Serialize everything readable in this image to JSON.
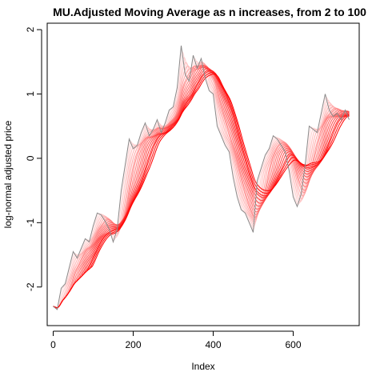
{
  "chart_data": {
    "type": "line",
    "title": "MU.Adjusted Moving Average as n increases, from 2 to 100",
    "xlabel": "Index",
    "ylabel": "log-normal adjusted price",
    "xlim": [
      -15,
      765
    ],
    "ylim": [
      -2.6,
      2.1
    ],
    "x_ticks": [
      0,
      200,
      400,
      600
    ],
    "y_ticks": [
      -2,
      -1,
      0,
      1,
      2
    ],
    "grid": false,
    "legend": "none",
    "colors": {
      "raw_series": "#8a8a8a",
      "ma_darkest": "#ff0000",
      "ma_lightest": "#ffe8e8",
      "frame": "#000000"
    },
    "ma_window": {
      "from": 2,
      "to": 100
    },
    "series": [
      {
        "x": [
          0,
          10,
          20,
          30,
          40,
          50,
          60,
          70,
          80,
          90,
          100,
          110,
          120,
          130,
          140,
          150,
          160,
          170,
          180,
          190,
          200,
          210,
          220,
          230,
          240,
          250,
          260,
          270,
          280,
          290,
          300,
          310,
          320,
          330,
          340,
          350,
          360,
          370,
          380,
          390,
          400,
          410,
          420,
          430,
          440,
          450,
          460,
          470,
          480,
          490,
          500,
          510,
          520,
          530,
          540,
          550,
          560,
          570,
          580,
          590,
          600,
          610,
          620,
          630,
          640,
          650,
          660,
          670,
          680,
          690,
          700,
          710,
          720,
          730,
          740
        ],
        "values": [
          -2.3,
          -2.35,
          -2.02,
          -1.95,
          -1.7,
          -1.45,
          -1.55,
          -1.4,
          -1.25,
          -1.3,
          -1.05,
          -0.85,
          -0.88,
          -0.98,
          -1.1,
          -1.3,
          -1.1,
          -0.5,
          -0.1,
          0.3,
          0.15,
          0.2,
          0.4,
          0.55,
          0.35,
          0.45,
          0.6,
          0.4,
          0.55,
          0.75,
          0.8,
          1.1,
          1.75,
          1.3,
          1.2,
          1.6,
          1.4,
          1.55,
          1.25,
          1.05,
          1.0,
          0.5,
          0.35,
          0.2,
          0.1,
          -0.3,
          -0.6,
          -0.8,
          -0.85,
          -1.0,
          -1.15,
          -0.35,
          -0.15,
          0.05,
          0.15,
          0.35,
          0.3,
          0.2,
          0.1,
          -0.2,
          -0.6,
          -0.75,
          -0.55,
          -0.1,
          0.5,
          0.45,
          0.4,
          0.7,
          1.0,
          0.75,
          0.65,
          0.7,
          0.6,
          0.75,
          0.6
        ]
      }
    ]
  }
}
